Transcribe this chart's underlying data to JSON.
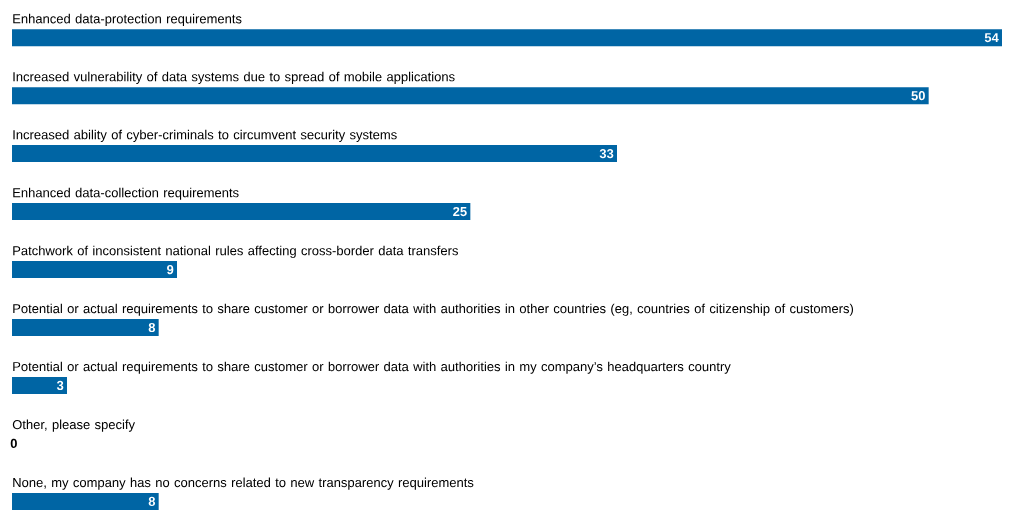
{
  "chart_data": {
    "type": "bar",
    "orientation": "horizontal",
    "data_labels": true,
    "color": "#0065a4",
    "categories": [
      "Enhanced data-protection requirements",
      "Increased vulnerability of data systems due to spread of mobile applications",
      "Increased ability of cyber-criminals to circumvent security systems",
      "Enhanced data-collection requirements",
      "Patchwork of inconsistent national rules affecting cross-border data transfers",
      "Potential or actual requirements to share customer or borrower data with authorities in other countries (eg, countries of citizenship of customers)",
      "Potential or actual requirements to share customer or borrower data with authorities in my company’s headquarters country",
      "Other, please specify",
      "None, my company has no concerns related to new transparency requirements"
    ],
    "values": [
      54,
      50,
      33,
      25,
      9,
      8,
      3,
      0,
      8
    ]
  }
}
